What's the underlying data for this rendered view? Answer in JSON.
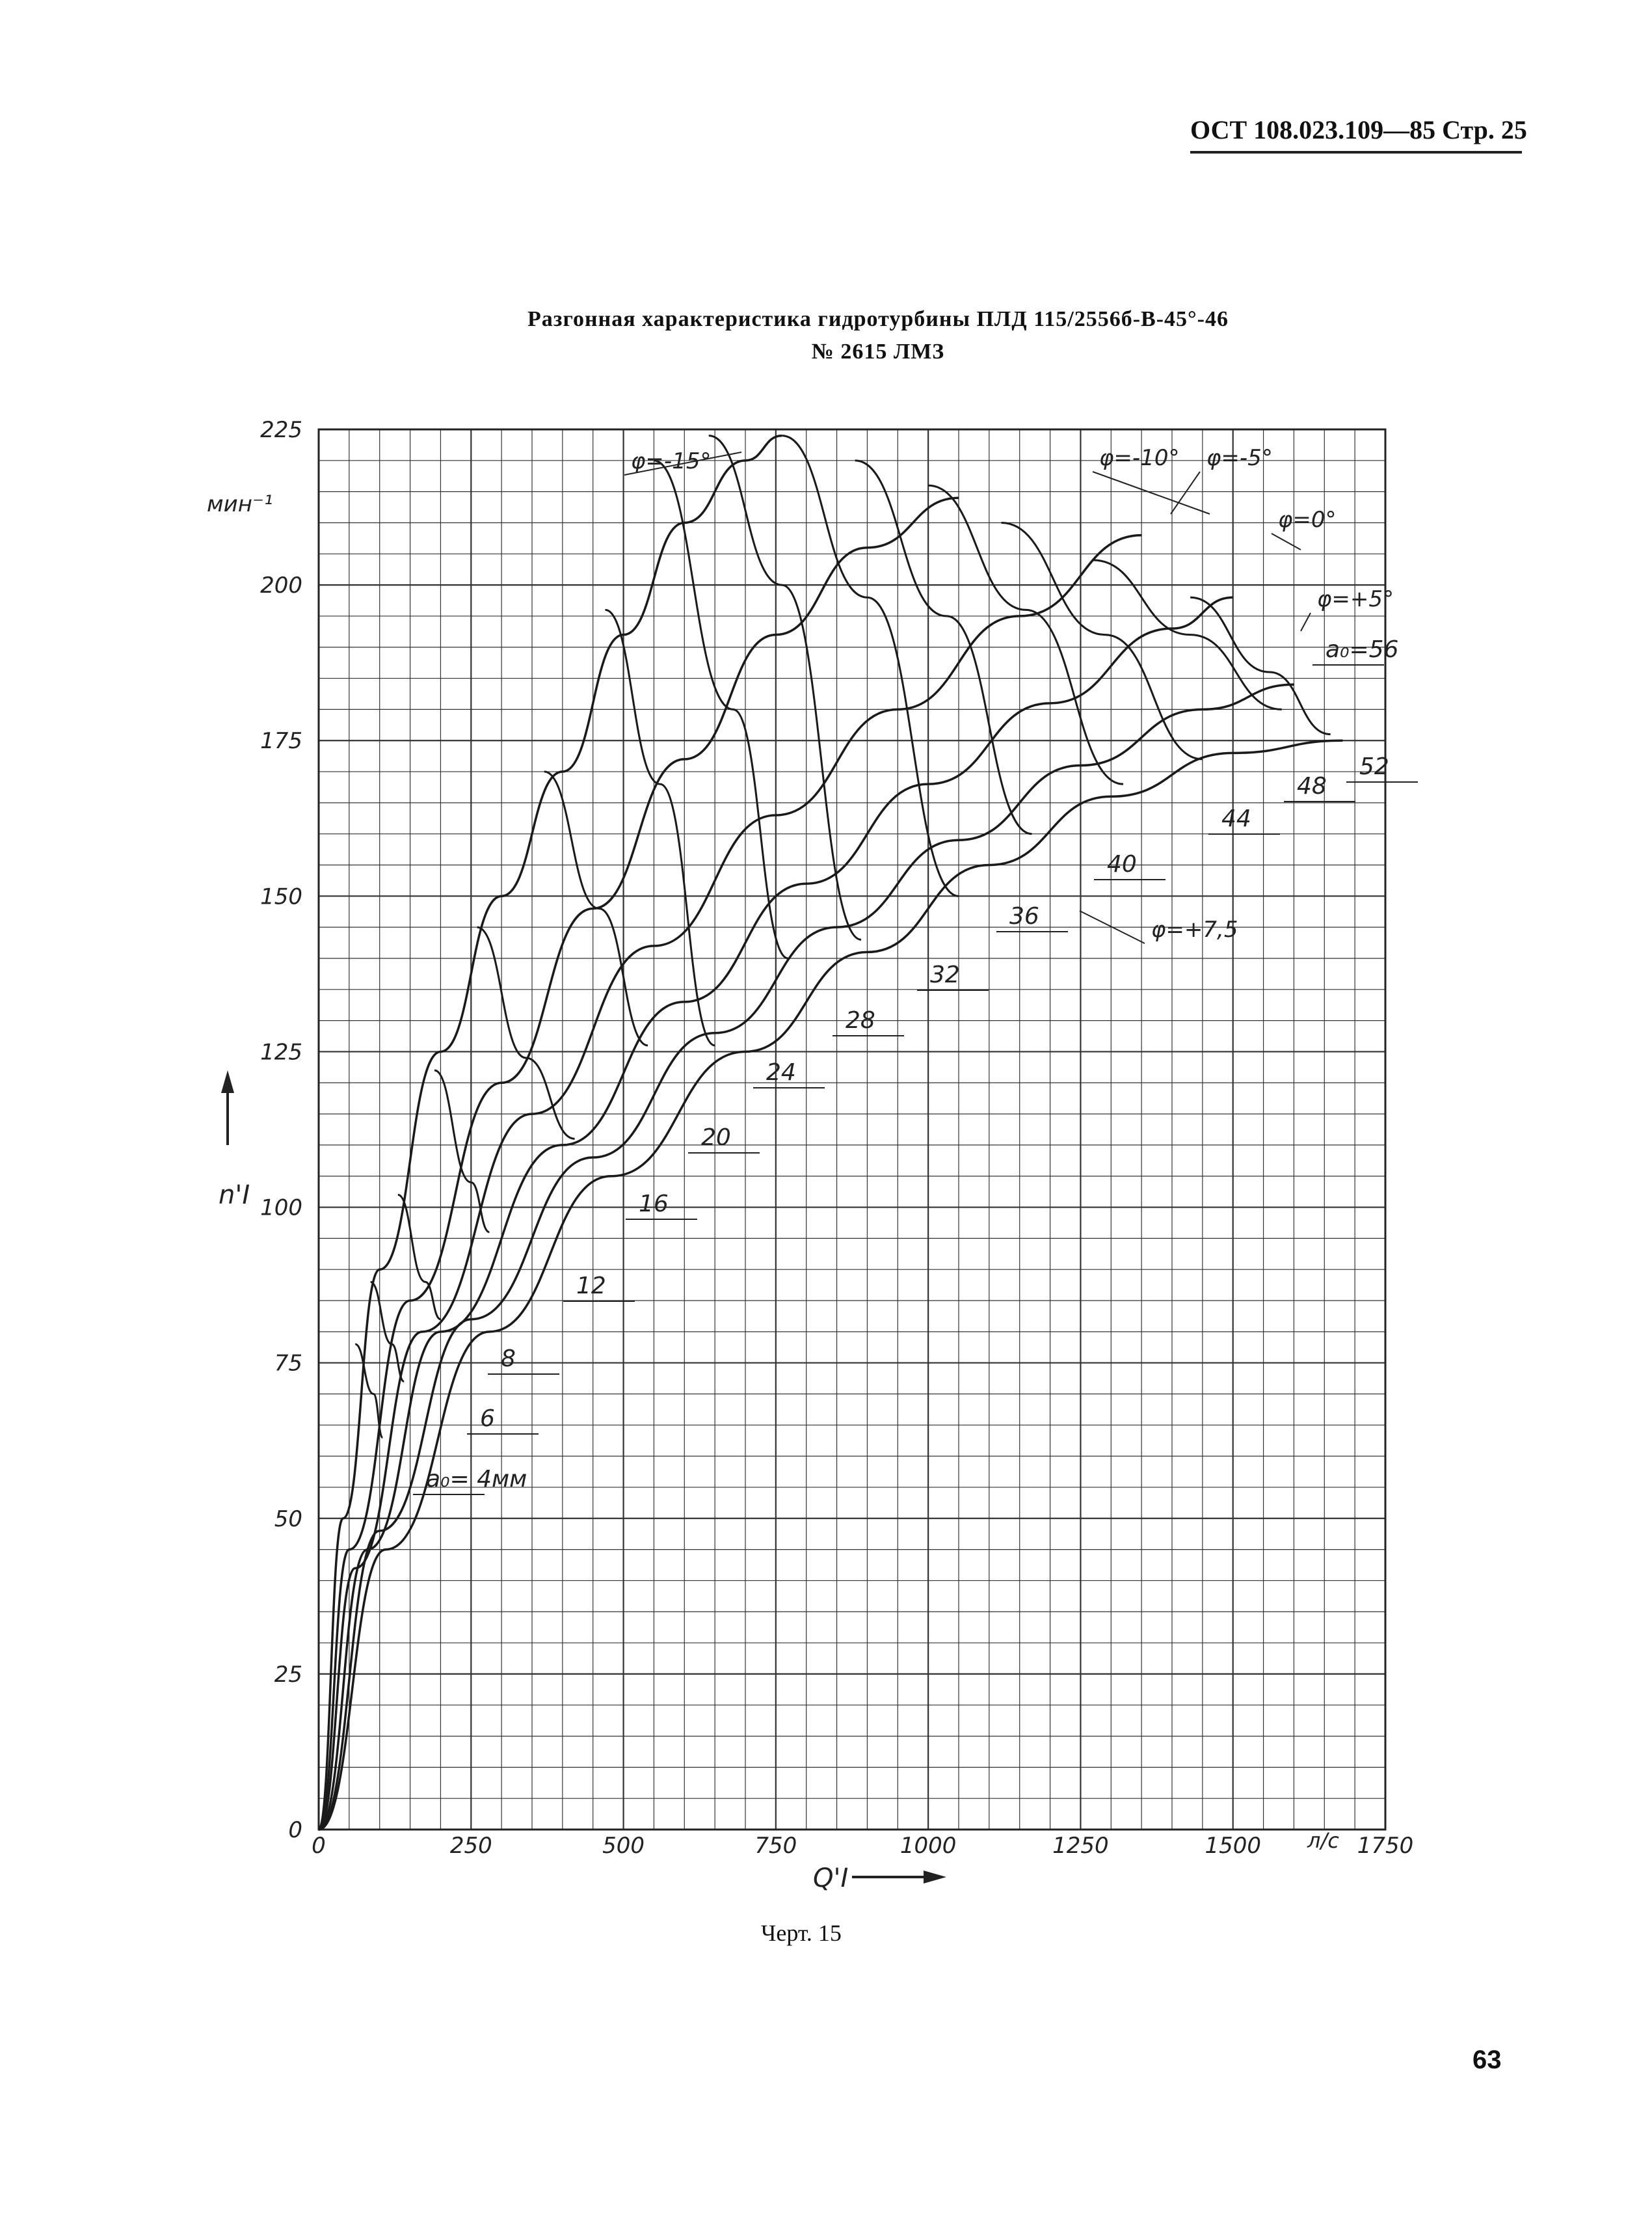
{
  "header": {
    "text": "ОСТ 108.023.109—85 Стр. 25"
  },
  "title": {
    "line1": "Разгонная характеристика гидротурбины ПЛД 115/2556б-В-45°-46",
    "line2": "№ 2615 ЛМЗ"
  },
  "caption": "Черт. 15",
  "page_number": "63",
  "chart_data": {
    "type": "line",
    "title": "Разгонная характеристика гидротурбины ПЛД 115/2556б-В-45°-46 № 2615 ЛМЗ",
    "xlabel": "Q'I",
    "ylabel": "n'I",
    "y_unit": "мин⁻¹",
    "x_unit": "л/с",
    "xlim": [
      0,
      1750
    ],
    "ylim": [
      0,
      225
    ],
    "x_ticks": [
      "0",
      "250",
      "500",
      "750",
      "1000",
      "1250",
      "1500",
      "1750"
    ],
    "y_ticks": [
      "0",
      "25",
      "50",
      "75",
      "100",
      "125",
      "150",
      "175",
      "200",
      "225"
    ],
    "grid": true,
    "series_phi": [
      {
        "name": "φ=-15°",
        "points": [
          [
            0,
            0
          ],
          [
            40,
            50
          ],
          [
            100,
            90
          ],
          [
            200,
            125
          ],
          [
            300,
            150
          ],
          [
            400,
            170
          ],
          [
            500,
            192
          ],
          [
            600,
            210
          ],
          [
            700,
            220
          ],
          [
            760,
            224
          ]
        ]
      },
      {
        "name": "φ=-10°",
        "points": [
          [
            0,
            0
          ],
          [
            50,
            45
          ],
          [
            150,
            85
          ],
          [
            300,
            120
          ],
          [
            450,
            148
          ],
          [
            600,
            172
          ],
          [
            750,
            192
          ],
          [
            900,
            206
          ],
          [
            1050,
            214
          ]
        ]
      },
      {
        "name": "φ=-5°",
        "points": [
          [
            0,
            0
          ],
          [
            60,
            42
          ],
          [
            170,
            80
          ],
          [
            350,
            115
          ],
          [
            550,
            142
          ],
          [
            750,
            163
          ],
          [
            950,
            180
          ],
          [
            1150,
            195
          ],
          [
            1350,
            208
          ]
        ]
      },
      {
        "name": "φ=0°",
        "points": [
          [
            0,
            0
          ],
          [
            80,
            45
          ],
          [
            200,
            80
          ],
          [
            400,
            110
          ],
          [
            600,
            133
          ],
          [
            800,
            152
          ],
          [
            1000,
            168
          ],
          [
            1200,
            181
          ],
          [
            1400,
            193
          ],
          [
            1500,
            198
          ]
        ]
      },
      {
        "name": "φ=+5°",
        "points": [
          [
            0,
            0
          ],
          [
            100,
            48
          ],
          [
            250,
            82
          ],
          [
            450,
            108
          ],
          [
            650,
            128
          ],
          [
            850,
            145
          ],
          [
            1050,
            159
          ],
          [
            1250,
            171
          ],
          [
            1450,
            180
          ],
          [
            1600,
            184
          ]
        ]
      },
      {
        "name": "φ=+7,5",
        "points": [
          [
            0,
            0
          ],
          [
            110,
            45
          ],
          [
            280,
            80
          ],
          [
            480,
            105
          ],
          [
            700,
            125
          ],
          [
            900,
            141
          ],
          [
            1100,
            155
          ],
          [
            1300,
            166
          ],
          [
            1500,
            173
          ],
          [
            1680,
            175
          ]
        ]
      }
    ],
    "series_a0": [
      {
        "name": "4",
        "points": [
          [
            60,
            78
          ],
          [
            90,
            70
          ],
          [
            105,
            63
          ]
        ]
      },
      {
        "name": "6",
        "points": [
          [
            85,
            88
          ],
          [
            120,
            78
          ],
          [
            140,
            72
          ]
        ]
      },
      {
        "name": "8",
        "points": [
          [
            130,
            102
          ],
          [
            175,
            88
          ],
          [
            200,
            82
          ]
        ]
      },
      {
        "name": "12",
        "points": [
          [
            190,
            122
          ],
          [
            250,
            104
          ],
          [
            280,
            96
          ]
        ]
      },
      {
        "name": "16",
        "points": [
          [
            260,
            145
          ],
          [
            340,
            124
          ],
          [
            420,
            111
          ]
        ]
      },
      {
        "name": "20",
        "points": [
          [
            370,
            170
          ],
          [
            460,
            148
          ],
          [
            540,
            126
          ]
        ]
      },
      {
        "name": "24",
        "points": [
          [
            470,
            196
          ],
          [
            560,
            168
          ],
          [
            650,
            126
          ]
        ]
      },
      {
        "name": "28",
        "points": [
          [
            550,
            220
          ],
          [
            680,
            180
          ],
          [
            770,
            140
          ]
        ]
      },
      {
        "name": "32",
        "points": [
          [
            640,
            224
          ],
          [
            760,
            200
          ],
          [
            890,
            143
          ]
        ]
      },
      {
        "name": "36",
        "points": [
          [
            760,
            224
          ],
          [
            900,
            198
          ],
          [
            1050,
            150
          ]
        ]
      },
      {
        "name": "40",
        "points": [
          [
            880,
            220
          ],
          [
            1030,
            195
          ],
          [
            1170,
            160
          ]
        ]
      },
      {
        "name": "44",
        "points": [
          [
            1000,
            216
          ],
          [
            1160,
            196
          ],
          [
            1320,
            168
          ]
        ]
      },
      {
        "name": "48",
        "points": [
          [
            1120,
            210
          ],
          [
            1290,
            192
          ],
          [
            1450,
            172
          ]
        ]
      },
      {
        "name": "52",
        "points": [
          [
            1270,
            204
          ],
          [
            1430,
            192
          ],
          [
            1580,
            180
          ]
        ]
      },
      {
        "name": "56",
        "points": [
          [
            1430,
            198
          ],
          [
            1560,
            186
          ],
          [
            1660,
            176
          ]
        ]
      }
    ],
    "annotations": {
      "phi_labels": [
        "φ=-15°",
        "φ=-10°",
        "φ=-5°",
        "φ=0°",
        "φ=+5°",
        "φ=+7,5"
      ],
      "a0_labels": [
        "a₀= 4мм",
        "6",
        "8",
        "12",
        "16",
        "20",
        "24",
        "28",
        "32",
        "36",
        "40",
        "44",
        "48",
        "52",
        "a₀=56"
      ]
    }
  }
}
